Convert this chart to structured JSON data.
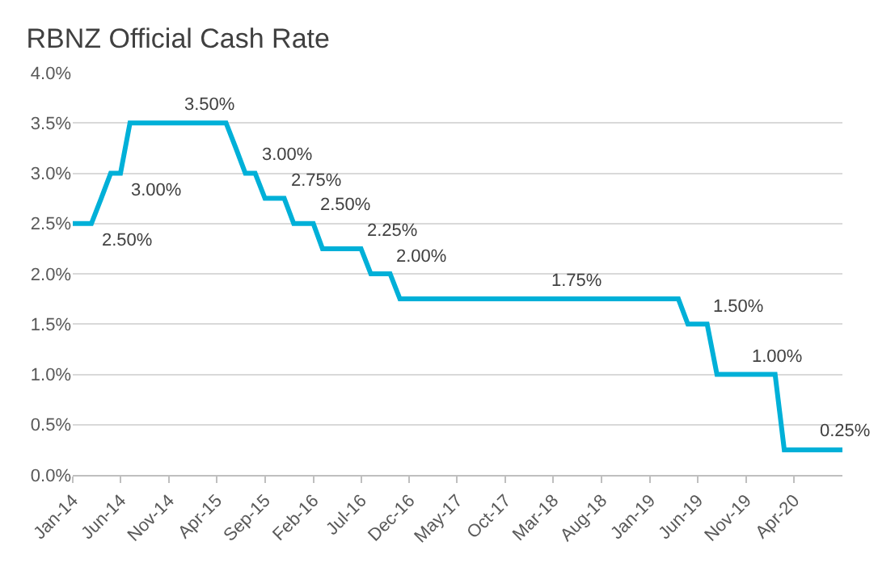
{
  "chart_data": {
    "type": "line",
    "title": "RBNZ Official Cash Rate",
    "x": [
      "2014-01",
      "2014-02",
      "2014-03",
      "2014-04",
      "2014-05",
      "2014-06",
      "2014-07",
      "2014-08",
      "2014-09",
      "2014-10",
      "2014-11",
      "2014-12",
      "2015-01",
      "2015-02",
      "2015-03",
      "2015-04",
      "2015-05",
      "2015-06",
      "2015-07",
      "2015-08",
      "2015-09",
      "2015-10",
      "2015-11",
      "2015-12",
      "2016-01",
      "2016-02",
      "2016-03",
      "2016-04",
      "2016-05",
      "2016-06",
      "2016-07",
      "2016-08",
      "2016-09",
      "2016-10",
      "2016-11",
      "2016-12",
      "2017-01",
      "2017-02",
      "2017-03",
      "2017-04",
      "2017-05",
      "2017-06",
      "2017-07",
      "2017-08",
      "2017-09",
      "2017-10",
      "2017-11",
      "2017-12",
      "2018-01",
      "2018-02",
      "2018-03",
      "2018-04",
      "2018-05",
      "2018-06",
      "2018-07",
      "2018-08",
      "2018-09",
      "2018-10",
      "2018-11",
      "2018-12",
      "2019-01",
      "2019-02",
      "2019-03",
      "2019-04",
      "2019-05",
      "2019-06",
      "2019-07",
      "2019-08",
      "2019-09",
      "2019-10",
      "2019-11",
      "2019-12",
      "2020-01",
      "2020-02",
      "2020-03",
      "2020-04",
      "2020-05",
      "2020-06",
      "2020-07",
      "2020-08",
      "2020-09"
    ],
    "series": [
      {
        "color": "#00b0d8",
        "values": [
          2.5,
          2.5,
          2.5,
          2.75,
          3.0,
          3.0,
          3.5,
          3.5,
          3.5,
          3.5,
          3.5,
          3.5,
          3.5,
          3.5,
          3.5,
          3.5,
          3.5,
          3.25,
          3.0,
          3.0,
          2.75,
          2.75,
          2.75,
          2.5,
          2.5,
          2.5,
          2.25,
          2.25,
          2.25,
          2.25,
          2.25,
          2.0,
          2.0,
          2.0,
          1.75,
          1.75,
          1.75,
          1.75,
          1.75,
          1.75,
          1.75,
          1.75,
          1.75,
          1.75,
          1.75,
          1.75,
          1.75,
          1.75,
          1.75,
          1.75,
          1.75,
          1.75,
          1.75,
          1.75,
          1.75,
          1.75,
          1.75,
          1.75,
          1.75,
          1.75,
          1.75,
          1.75,
          1.75,
          1.75,
          1.5,
          1.5,
          1.5,
          1.0,
          1.0,
          1.0,
          1.0,
          1.0,
          1.0,
          1.0,
          0.25,
          0.25,
          0.25,
          0.25,
          0.25,
          0.25,
          0.25
        ],
        "value_labels": [
          null,
          null,
          "2.50%",
          null,
          null,
          "3.00%",
          null,
          null,
          null,
          null,
          null,
          "3.50%",
          null,
          null,
          null,
          null,
          null,
          null,
          null,
          "3.00%",
          null,
          null,
          "2.75%",
          null,
          null,
          "2.50%",
          null,
          null,
          null,
          null,
          "2.25%",
          null,
          null,
          "2.00%",
          null,
          null,
          null,
          null,
          null,
          null,
          null,
          null,
          null,
          null,
          null,
          null,
          null,
          null,
          null,
          "1.75%",
          null,
          null,
          null,
          null,
          null,
          null,
          null,
          null,
          null,
          null,
          null,
          null,
          null,
          null,
          null,
          null,
          "1.50%",
          null,
          null,
          null,
          "1.00%",
          null,
          null,
          null,
          null,
          null,
          null,
          "0.25%",
          null,
          null,
          null
        ]
      }
    ],
    "xlim": [
      "2014-01",
      "2020-09"
    ],
    "xticks": [
      {
        "value": "2014-01",
        "label": "Jan-14"
      },
      {
        "value": "2014-06",
        "label": "Jun-14"
      },
      {
        "value": "2014-11",
        "label": "Nov-14"
      },
      {
        "value": "2015-04",
        "label": "Apr-15"
      },
      {
        "value": "2015-09",
        "label": "Sep-15"
      },
      {
        "value": "2016-02",
        "label": "Feb-16"
      },
      {
        "value": "2016-07",
        "label": "Jul-16"
      },
      {
        "value": "2016-12",
        "label": "Dec-16"
      },
      {
        "value": "2017-05",
        "label": "May-17"
      },
      {
        "value": "2017-10",
        "label": "Oct-17"
      },
      {
        "value": "2018-03",
        "label": "Mar-18"
      },
      {
        "value": "2018-08",
        "label": "Aug-18"
      },
      {
        "value": "2019-01",
        "label": "Jan-19"
      },
      {
        "value": "2019-06",
        "label": "Jun-19"
      },
      {
        "value": "2019-11",
        "label": "Nov-19"
      },
      {
        "value": "2020-04",
        "label": "Apr-20"
      }
    ],
    "ylim": [
      0,
      4
    ],
    "yticks": [
      {
        "value": 0,
        "label": "0.0%"
      },
      {
        "value": 0.5,
        "label": "0.5%"
      },
      {
        "value": 1,
        "label": "1.0%"
      },
      {
        "value": 1.5,
        "label": "1.5%"
      },
      {
        "value": 2,
        "label": "2.0%"
      },
      {
        "value": 2.5,
        "label": "2.5%"
      },
      {
        "value": 3,
        "label": "3.0%"
      },
      {
        "value": 3.5,
        "label": "3.5%"
      },
      {
        "value": 4,
        "label": "4.0%"
      }
    ],
    "grid": "y",
    "marker": "none",
    "line_style": "solid"
  }
}
